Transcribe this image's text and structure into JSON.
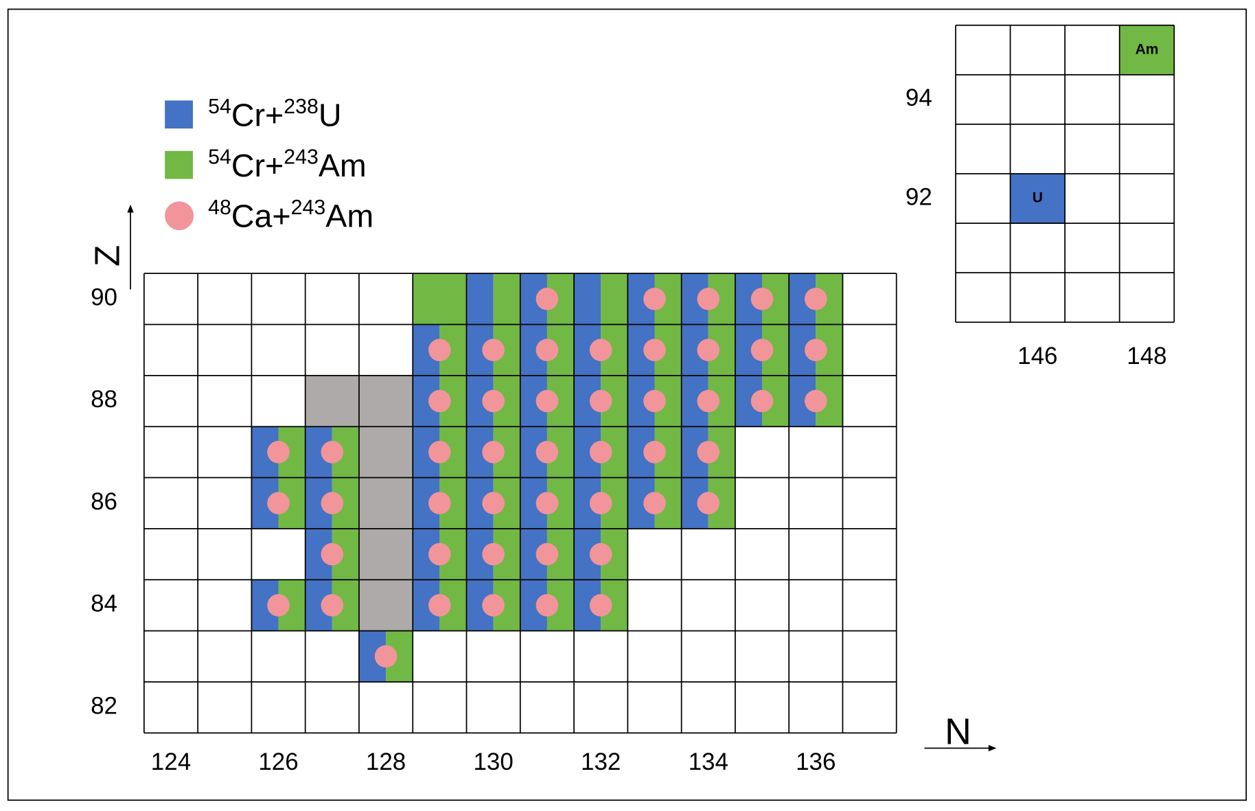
{
  "main_chart": {
    "x_label": "N",
    "y_label": "Z",
    "n_range": [
      124,
      137
    ],
    "z_range": [
      82,
      90
    ],
    "xticks": [
      124,
      126,
      128,
      130,
      132,
      134,
      136
    ],
    "yticks": [
      82,
      84,
      86,
      88,
      90
    ]
  },
  "legend": [
    {
      "marker": "square",
      "color": "#4472c4",
      "label": [
        {
          "text": "54",
          "sup": true
        },
        {
          "text": "Cr+",
          "sup": false
        },
        {
          "text": "238",
          "sup": true
        },
        {
          "text": "U",
          "sup": false
        }
      ],
      "cells": [
        [
          130,
          90
        ],
        [
          131,
          90
        ],
        [
          132,
          90
        ],
        [
          133,
          90
        ],
        [
          134,
          90
        ],
        [
          135,
          90
        ],
        [
          136,
          90
        ],
        [
          129,
          89
        ],
        [
          130,
          89
        ],
        [
          131,
          89
        ],
        [
          132,
          89
        ],
        [
          133,
          89
        ],
        [
          134,
          89
        ],
        [
          135,
          89
        ],
        [
          136,
          89
        ],
        [
          129,
          88
        ],
        [
          130,
          88
        ],
        [
          131,
          88
        ],
        [
          132,
          88
        ],
        [
          133,
          88
        ],
        [
          134,
          88
        ],
        [
          135,
          88
        ],
        [
          136,
          88
        ],
        [
          126,
          87
        ],
        [
          127,
          87
        ],
        [
          129,
          87
        ],
        [
          130,
          87
        ],
        [
          131,
          87
        ],
        [
          132,
          87
        ],
        [
          133,
          87
        ],
        [
          134,
          87
        ],
        [
          126,
          86
        ],
        [
          127,
          86
        ],
        [
          129,
          86
        ],
        [
          130,
          86
        ],
        [
          131,
          86
        ],
        [
          132,
          86
        ],
        [
          133,
          86
        ],
        [
          134,
          86
        ],
        [
          127,
          85
        ],
        [
          129,
          85
        ],
        [
          130,
          85
        ],
        [
          131,
          85
        ],
        [
          132,
          85
        ],
        [
          126,
          84
        ],
        [
          127,
          84
        ],
        [
          129,
          84
        ],
        [
          130,
          84
        ],
        [
          131,
          84
        ],
        [
          132,
          84
        ],
        [
          128,
          83
        ]
      ]
    },
    {
      "marker": "square",
      "color": "#72b844",
      "label": [
        {
          "text": "54",
          "sup": true
        },
        {
          "text": "Cr+",
          "sup": false
        },
        {
          "text": "243",
          "sup": true
        },
        {
          "text": "Am",
          "sup": false
        }
      ],
      "cells": [
        [
          129,
          90
        ],
        [
          130,
          90
        ],
        [
          131,
          90
        ],
        [
          132,
          90
        ],
        [
          133,
          90
        ],
        [
          134,
          90
        ],
        [
          135,
          90
        ],
        [
          136,
          90
        ],
        [
          129,
          89
        ],
        [
          130,
          89
        ],
        [
          131,
          89
        ],
        [
          132,
          89
        ],
        [
          133,
          89
        ],
        [
          134,
          89
        ],
        [
          135,
          89
        ],
        [
          136,
          89
        ],
        [
          129,
          88
        ],
        [
          130,
          88
        ],
        [
          131,
          88
        ],
        [
          132,
          88
        ],
        [
          133,
          88
        ],
        [
          134,
          88
        ],
        [
          135,
          88
        ],
        [
          136,
          88
        ],
        [
          126,
          87
        ],
        [
          127,
          87
        ],
        [
          129,
          87
        ],
        [
          130,
          87
        ],
        [
          131,
          87
        ],
        [
          132,
          87
        ],
        [
          133,
          87
        ],
        [
          134,
          87
        ],
        [
          126,
          86
        ],
        [
          127,
          86
        ],
        [
          129,
          86
        ],
        [
          130,
          86
        ],
        [
          131,
          86
        ],
        [
          132,
          86
        ],
        [
          133,
          86
        ],
        [
          134,
          86
        ],
        [
          127,
          85
        ],
        [
          129,
          85
        ],
        [
          130,
          85
        ],
        [
          131,
          85
        ],
        [
          132,
          85
        ],
        [
          126,
          84
        ],
        [
          127,
          84
        ],
        [
          129,
          84
        ],
        [
          130,
          84
        ],
        [
          131,
          84
        ],
        [
          132,
          84
        ],
        [
          128,
          83
        ]
      ]
    },
    {
      "marker": "circle",
      "color": "#f1959b",
      "label": [
        {
          "text": "48",
          "sup": true
        },
        {
          "text": "Ca+",
          "sup": false
        },
        {
          "text": "243",
          "sup": true
        },
        {
          "text": "Am",
          "sup": false
        }
      ],
      "cells": [
        [
          131,
          90
        ],
        [
          133,
          90
        ],
        [
          134,
          90
        ],
        [
          135,
          90
        ],
        [
          136,
          90
        ],
        [
          129,
          89
        ],
        [
          130,
          89
        ],
        [
          131,
          89
        ],
        [
          132,
          89
        ],
        [
          133,
          89
        ],
        [
          134,
          89
        ],
        [
          135,
          89
        ],
        [
          136,
          89
        ],
        [
          129,
          88
        ],
        [
          130,
          88
        ],
        [
          131,
          88
        ],
        [
          132,
          88
        ],
        [
          133,
          88
        ],
        [
          134,
          88
        ],
        [
          135,
          88
        ],
        [
          136,
          88
        ],
        [
          126,
          87
        ],
        [
          127,
          87
        ],
        [
          129,
          87
        ],
        [
          130,
          87
        ],
        [
          131,
          87
        ],
        [
          132,
          87
        ],
        [
          133,
          87
        ],
        [
          134,
          87
        ],
        [
          126,
          86
        ],
        [
          127,
          86
        ],
        [
          129,
          86
        ],
        [
          130,
          86
        ],
        [
          131,
          86
        ],
        [
          132,
          86
        ],
        [
          133,
          86
        ],
        [
          134,
          86
        ],
        [
          127,
          85
        ],
        [
          129,
          85
        ],
        [
          130,
          85
        ],
        [
          131,
          85
        ],
        [
          132,
          85
        ],
        [
          126,
          84
        ],
        [
          127,
          84
        ],
        [
          129,
          84
        ],
        [
          130,
          84
        ],
        [
          131,
          84
        ],
        [
          132,
          84
        ],
        [
          128,
          83
        ]
      ]
    }
  ],
  "other_cells": {
    "color": "#aeaaaa",
    "cells": [
      [
        127,
        88
      ],
      [
        128,
        88
      ],
      [
        128,
        87
      ],
      [
        128,
        86
      ],
      [
        128,
        85
      ],
      [
        128,
        84
      ]
    ]
  },
  "inset": {
    "n_range": [
      145,
      148
    ],
    "z_range": [
      90,
      95
    ],
    "xticks": [
      146,
      148
    ],
    "yticks": [
      92,
      94
    ],
    "cells": [
      {
        "n": 146,
        "z": 92,
        "label": "U",
        "color": "#4472c4"
      },
      {
        "n": 148,
        "z": 95,
        "label": "Am",
        "color": "#72b844"
      }
    ]
  }
}
